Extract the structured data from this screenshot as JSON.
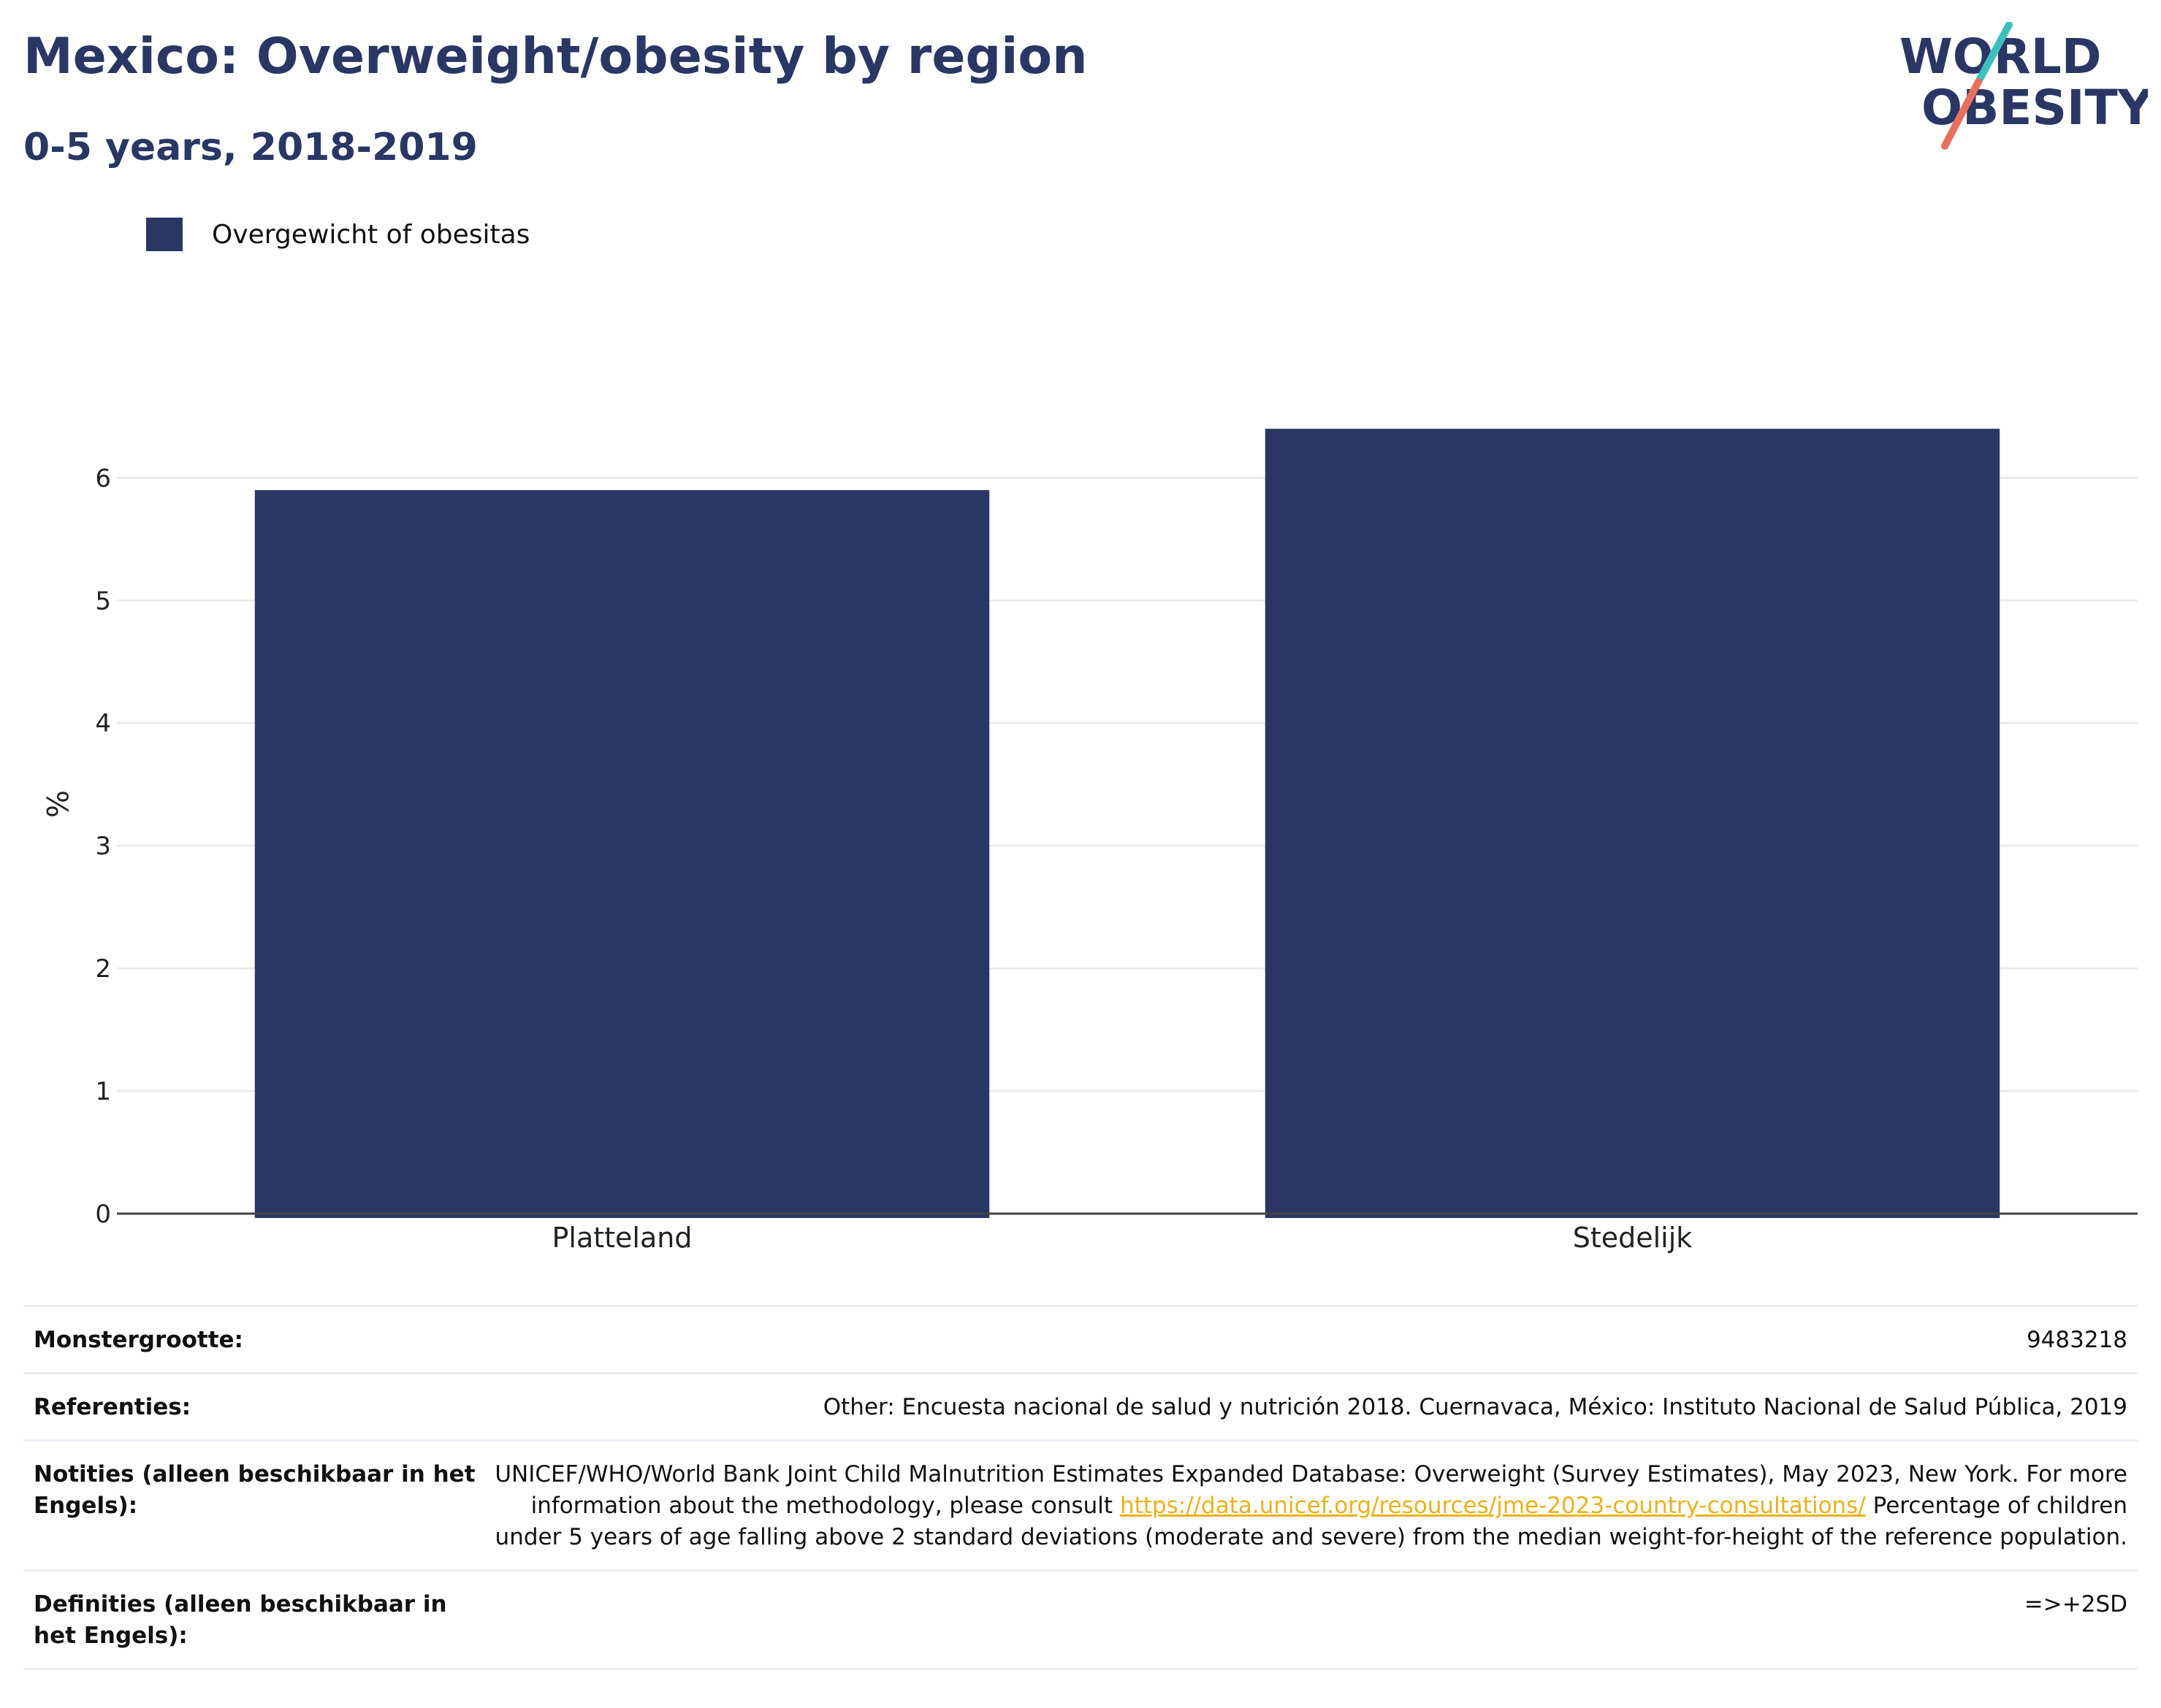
{
  "header": {
    "title": "Mexico: Overweight/obesity by region",
    "subtitle": "0-5 years, 2018-2019"
  },
  "logo": {
    "line1": "WORLD",
    "line2": "OBESITY",
    "slash_colors": [
      "#3dbfbf",
      "#e8705b"
    ],
    "text_color": "#2a3764"
  },
  "chart_data": {
    "type": "bar",
    "categories": [
      "Platteland",
      "Stedelijk"
    ],
    "series": [
      {
        "name": "Overgewicht of obesitas",
        "values": [
          5.9,
          6.4
        ],
        "color": "#2a3764"
      }
    ],
    "xlabel": "",
    "ylabel": "%",
    "ylim": [
      0,
      6.8
    ],
    "yticks": [
      0,
      1,
      2,
      3,
      4,
      5,
      6
    ],
    "grid": true,
    "legend_position": "top-left"
  },
  "info": {
    "rows": [
      {
        "label": "Monstergrootte:",
        "value": "9483218"
      },
      {
        "label": "Referenties:",
        "value": "Other: Encuesta nacional de salud y nutrición 2018. Cuernavaca, México: Instituto Nacional de Salud Pública, 2019"
      },
      {
        "label": "Notities (alleen beschikbaar in het Engels):",
        "value_before": "UNICEF/WHO/World Bank Joint Child Malnutrition Estimates Expanded Database: Overweight (Survey Estimates), May 2023, New York. For more information about the methodology, please consult ",
        "link": "https://data.unicef.org/resources/jme-2023-country-consultations/",
        "value_after": " Percentage of children under 5 years of age falling above 2 standard deviations (moderate and severe) from the median weight-for-height of the reference population."
      },
      {
        "label": "Definities (alleen beschikbaar in het Engels):",
        "value": "=>+2SD"
      }
    ]
  }
}
